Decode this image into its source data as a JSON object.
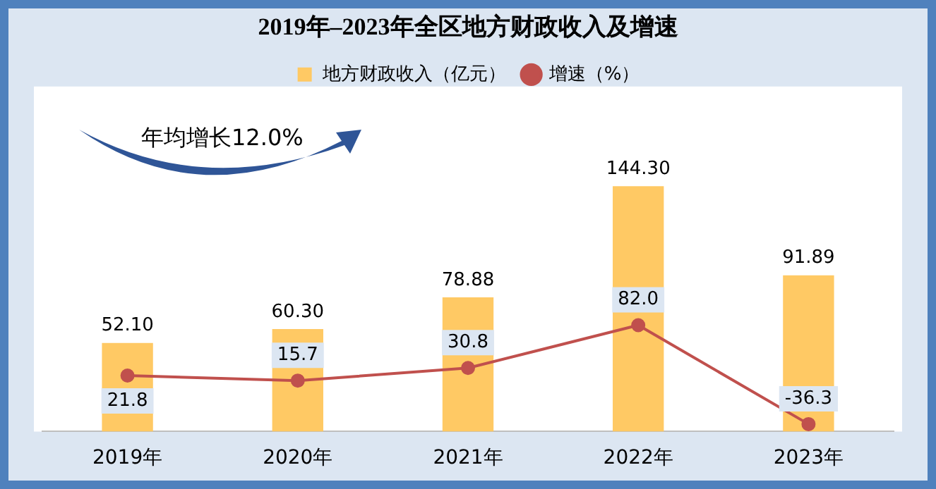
{
  "chart_data": {
    "type": "bar",
    "title": "2019年–2023年全区地方财政收入及增速",
    "categories": [
      "2019年",
      "2020年",
      "2021年",
      "2022年",
      "2023年"
    ],
    "series": [
      {
        "name": "地方财政收入（亿元）",
        "type": "bar",
        "color": "#ffc964",
        "values": [
          52.1,
          60.3,
          78.88,
          144.3,
          91.89
        ],
        "value_labels": [
          "52.10",
          "60.30",
          "78.88",
          "144.30",
          "91.89"
        ]
      },
      {
        "name": "增速（%）",
        "type": "line",
        "axis": "y2",
        "color": "#c0504d",
        "values": [
          21.8,
          15.7,
          30.8,
          82.0,
          -36.3
        ],
        "value_labels": [
          "21.8",
          "15.7",
          "30.8",
          "82.0",
          "-36.3"
        ]
      }
    ],
    "annotations": [
      "年均增长12.0%"
    ],
    "legend": "top",
    "tick_labels": "x",
    "marker": "circle",
    "grid": false
  }
}
